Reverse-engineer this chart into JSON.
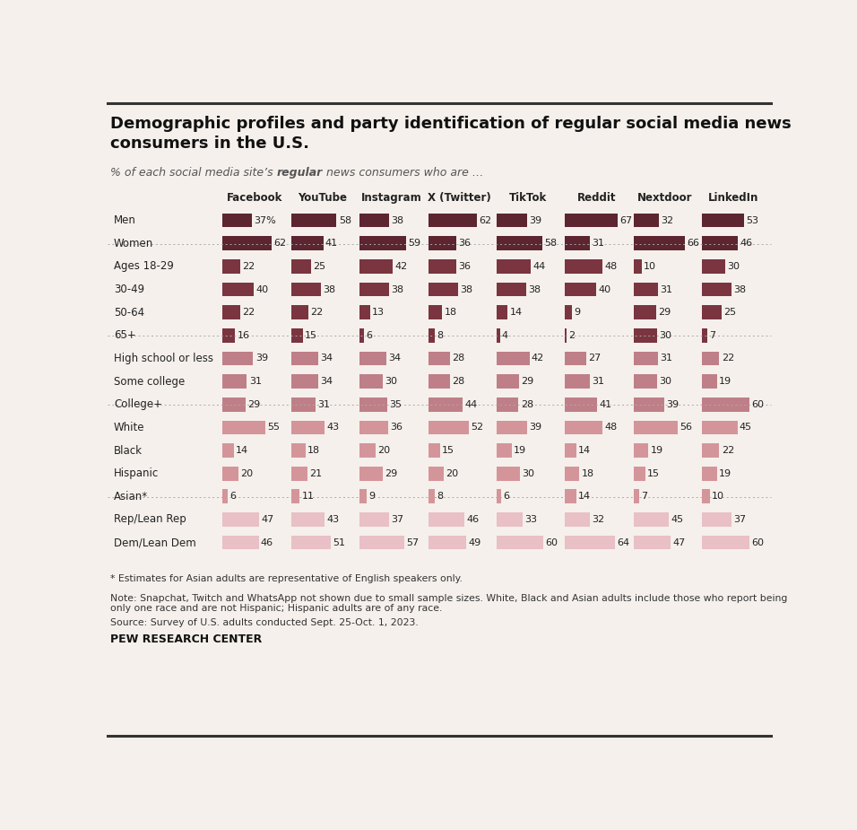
{
  "title": "Demographic profiles and party identification of regular social media news\nconsumers in the U.S.",
  "subtitle_normal": "% of each social media site’s ",
  "subtitle_bold": "regular",
  "subtitle_end": " news consumers who are …",
  "platforms": [
    "Facebook",
    "YouTube",
    "Instagram",
    "X (Twitter)",
    "TikTok",
    "Reddit",
    "Nextdoor",
    "LinkedIn"
  ],
  "rows": [
    {
      "label": "Men",
      "values": [
        37,
        58,
        38,
        62,
        39,
        67,
        32,
        53
      ],
      "group": "gender"
    },
    {
      "label": "Women",
      "values": [
        62,
        41,
        59,
        36,
        58,
        31,
        66,
        46
      ],
      "group": "gender"
    },
    {
      "label": "Ages 18-29",
      "values": [
        22,
        25,
        42,
        36,
        44,
        48,
        10,
        30
      ],
      "group": "age"
    },
    {
      "label": "30-49",
      "values": [
        40,
        38,
        38,
        38,
        38,
        40,
        31,
        38
      ],
      "group": "age"
    },
    {
      "label": "50-64",
      "values": [
        22,
        22,
        13,
        18,
        14,
        9,
        29,
        25
      ],
      "group": "age"
    },
    {
      "label": "65+",
      "values": [
        16,
        15,
        6,
        8,
        4,
        2,
        30,
        7
      ],
      "group": "age"
    },
    {
      "label": "High school or less",
      "values": [
        39,
        34,
        34,
        28,
        42,
        27,
        31,
        22
      ],
      "group": "education"
    },
    {
      "label": "Some college",
      "values": [
        31,
        34,
        30,
        28,
        29,
        31,
        30,
        19
      ],
      "group": "education"
    },
    {
      "label": "College+",
      "values": [
        29,
        31,
        35,
        44,
        28,
        41,
        39,
        60
      ],
      "group": "education"
    },
    {
      "label": "White",
      "values": [
        55,
        43,
        36,
        52,
        39,
        48,
        56,
        45
      ],
      "group": "race"
    },
    {
      "label": "Black",
      "values": [
        14,
        18,
        20,
        15,
        19,
        14,
        19,
        22
      ],
      "group": "race"
    },
    {
      "label": "Hispanic",
      "values": [
        20,
        21,
        29,
        20,
        30,
        18,
        15,
        19
      ],
      "group": "race"
    },
    {
      "label": "Asian*",
      "values": [
        6,
        11,
        9,
        8,
        6,
        14,
        7,
        10
      ],
      "group": "race"
    },
    {
      "label": "Rep/Lean Rep",
      "values": [
        47,
        43,
        37,
        46,
        33,
        32,
        45,
        37
      ],
      "group": "party"
    },
    {
      "label": "Dem/Lean Dem",
      "values": [
        46,
        51,
        57,
        49,
        60,
        64,
        47,
        60
      ],
      "group": "party"
    }
  ],
  "group_colors": {
    "gender": "#5c2530",
    "age": "#7a3540",
    "education": "#bf7f88",
    "race": "#d4959a",
    "party": "#e8c0c5"
  },
  "men_label_suffix": "%",
  "footnote1": "* Estimates for Asian adults are representative of English speakers only.",
  "footnote2": "Note: Snapchat, Twitch and WhatsApp not shown due to small sample sizes. White, Black and Asian adults include those who report being\nonly one race and are not Hispanic; Hispanic adults are of any race.",
  "footnote3": "Source: Survey of U.S. adults conducted Sept. 25-Oct. 1, 2023.",
  "source": "PEW RESEARCH CENTER",
  "bg_color": "#f5f0eb",
  "max_val": 70
}
